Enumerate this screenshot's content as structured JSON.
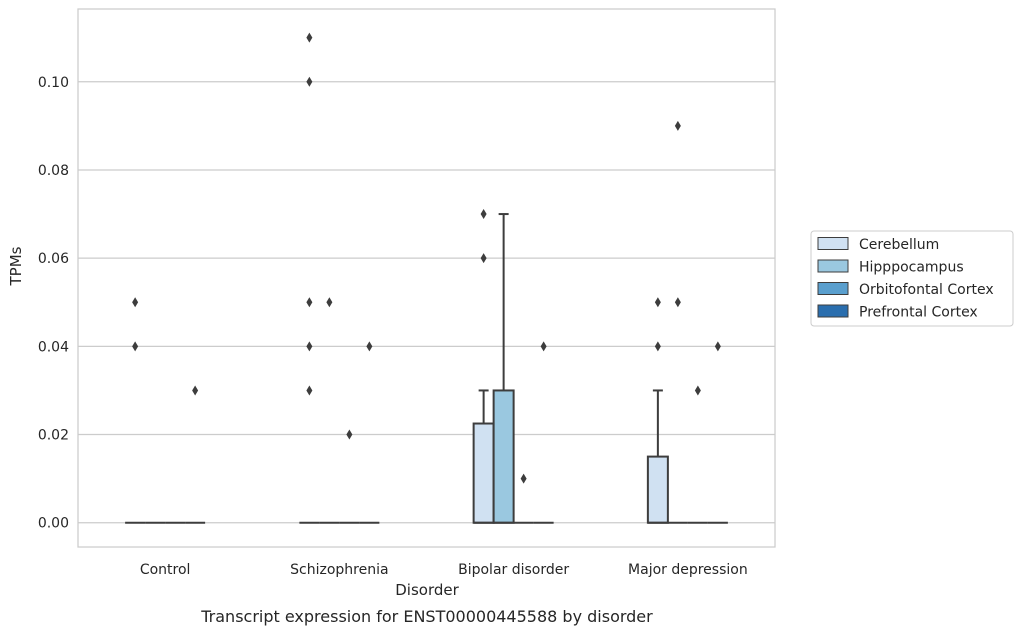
{
  "caption": "Transcript expression for ENST00000445588 by disorder",
  "chart_data": {
    "type": "box",
    "xlabel": "Disorder",
    "ylabel": "TPMs",
    "categories": [
      "Control",
      "Schizophrenia",
      "Bipolar disorder",
      "Major depression"
    ],
    "ylim": [
      -0.0055,
      0.1165
    ],
    "yticks": [
      0.0,
      0.02,
      0.04,
      0.06,
      0.08,
      0.1
    ],
    "ytick_labels": [
      "0.00",
      "0.02",
      "0.04",
      "0.06",
      "0.08",
      "0.10"
    ],
    "grid": true,
    "legend_position": "right",
    "series": [
      {
        "name": "Cerebellum",
        "color": "#d0e1f2",
        "boxes": [
          {
            "category": "Control",
            "q1": 0,
            "median": 0,
            "q3": 0,
            "whisker_low": 0,
            "whisker_high": 0,
            "outliers": [
              0.04,
              0.05
            ]
          },
          {
            "category": "Schizophrenia",
            "q1": 0,
            "median": 0,
            "q3": 0,
            "whisker_low": 0,
            "whisker_high": 0,
            "outliers": [
              0.03,
              0.04,
              0.05,
              0.1,
              0.11
            ]
          },
          {
            "category": "Bipolar disorder",
            "q1": 0,
            "median": 0,
            "q3": 0.0225,
            "whisker_low": 0,
            "whisker_high": 0.03,
            "outliers": [
              0.06,
              0.07
            ]
          },
          {
            "category": "Major depression",
            "q1": 0,
            "median": 0,
            "q3": 0.015,
            "whisker_low": 0,
            "whisker_high": 0.03,
            "outliers": [
              0.04,
              0.05
            ]
          }
        ]
      },
      {
        "name": "Hipppocampus",
        "color": "#9ac8e0",
        "boxes": [
          {
            "category": "Control",
            "q1": 0,
            "median": 0,
            "q3": 0,
            "whisker_low": 0,
            "whisker_high": 0,
            "outliers": []
          },
          {
            "category": "Schizophrenia",
            "q1": 0,
            "median": 0,
            "q3": 0,
            "whisker_low": 0,
            "whisker_high": 0,
            "outliers": [
              0.05
            ]
          },
          {
            "category": "Bipolar disorder",
            "q1": 0,
            "median": 0,
            "q3": 0.03,
            "whisker_low": 0,
            "whisker_high": 0.07,
            "outliers": []
          },
          {
            "category": "Major depression",
            "q1": 0,
            "median": 0,
            "q3": 0,
            "whisker_low": 0,
            "whisker_high": 0,
            "outliers": [
              0.05,
              0.09
            ]
          }
        ]
      },
      {
        "name": "Orbitofontal Cortex",
        "color": "#5a9fce",
        "boxes": [
          {
            "category": "Control",
            "q1": 0,
            "median": 0,
            "q3": 0,
            "whisker_low": 0,
            "whisker_high": 0,
            "outliers": []
          },
          {
            "category": "Schizophrenia",
            "q1": 0,
            "median": 0,
            "q3": 0,
            "whisker_low": 0,
            "whisker_high": 0,
            "outliers": [
              0.02
            ]
          },
          {
            "category": "Bipolar disorder",
            "q1": 0,
            "median": 0,
            "q3": 0,
            "whisker_low": 0,
            "whisker_high": 0,
            "outliers": [
              0.01
            ]
          },
          {
            "category": "Major depression",
            "q1": 0,
            "median": 0,
            "q3": 0,
            "whisker_low": 0,
            "whisker_high": 0,
            "outliers": [
              0.03
            ]
          }
        ]
      },
      {
        "name": "Prefrontal Cortex",
        "color": "#2a6eae",
        "boxes": [
          {
            "category": "Control",
            "q1": 0,
            "median": 0,
            "q3": 0,
            "whisker_low": 0,
            "whisker_high": 0,
            "outliers": [
              0.03
            ]
          },
          {
            "category": "Schizophrenia",
            "q1": 0,
            "median": 0,
            "q3": 0,
            "whisker_low": 0,
            "whisker_high": 0,
            "outliers": [
              0.04
            ]
          },
          {
            "category": "Bipolar disorder",
            "q1": 0,
            "median": 0,
            "q3": 0,
            "whisker_low": 0,
            "whisker_high": 0,
            "outliers": [
              0.04
            ]
          },
          {
            "category": "Major depression",
            "q1": 0,
            "median": 0,
            "q3": 0,
            "whisker_low": 0,
            "whisker_high": 0,
            "outliers": [
              0.04
            ]
          }
        ]
      }
    ]
  }
}
